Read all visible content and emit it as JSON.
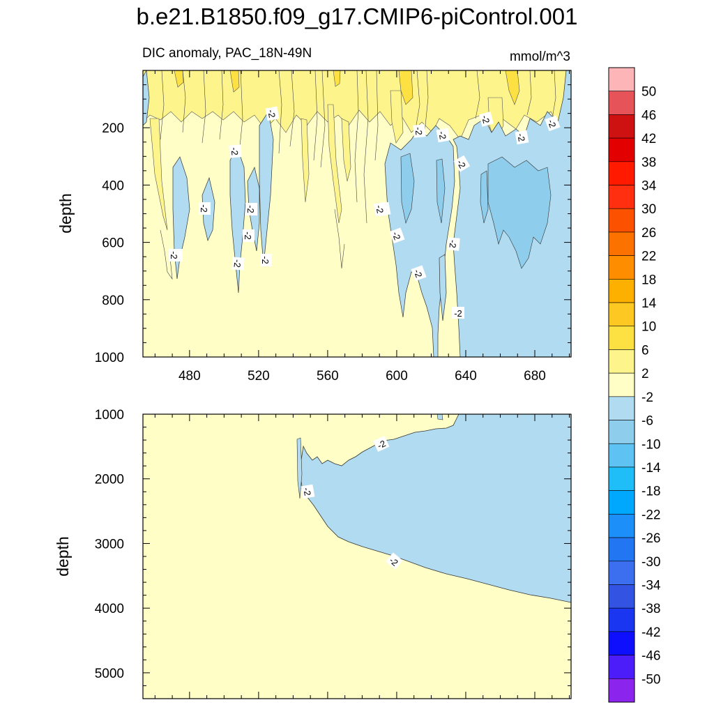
{
  "figure": {
    "title": "b.e21.B1850.f09_g17.CMIP6-piControl.001",
    "subtitle_left": "DIC anomaly, PAC_18N-49N",
    "subtitle_right": "mmol/m^3"
  },
  "chart_data": [
    {
      "type": "heatmap",
      "panel": "upper",
      "title": "DIC anomaly, PAC_18N-49N",
      "units": "mmol/m^3",
      "xlabel": "",
      "ylabel": "depth",
      "xlim": [
        453,
        701
      ],
      "ylim": [
        1000,
        0
      ],
      "xticks": [
        480,
        520,
        560,
        600,
        640,
        680
      ],
      "yticks": [
        200,
        400,
        600,
        800,
        1000
      ],
      "contour_label": "-2",
      "description_values": {
        "background_class": "-2 to 2",
        "negative_class": "-6 to -2",
        "strong_negative_class": "-10 to -6",
        "positive_class": "2 to 6",
        "strong_positive_class": "6 to 10"
      }
    },
    {
      "type": "heatmap",
      "panel": "lower",
      "xlabel": "",
      "ylabel": "depth",
      "xlim": [
        453,
        701
      ],
      "ylim": [
        5400,
        1000
      ],
      "yticks": [
        1000,
        2000,
        3000,
        4000,
        5000
      ],
      "contour_label": "-2"
    }
  ],
  "colorbar": {
    "levels": [
      "50",
      "46",
      "42",
      "38",
      "34",
      "30",
      "26",
      "22",
      "18",
      "14",
      "10",
      "6",
      "2",
      "-2",
      "-6",
      "-10",
      "-14",
      "-18",
      "-22",
      "-26",
      "-30",
      "-34",
      "-38",
      "-42",
      "-46",
      "-50"
    ],
    "colors": [
      "#fdb5b8",
      "#e6545a",
      "#ce1212",
      "#e20000",
      "#ff1a00",
      "#ff2f10",
      "#fc5200",
      "#fc7200",
      "#fe8d00",
      "#feb000",
      "#fdc822",
      "#fde143",
      "#fdf48c",
      "#fefec6",
      "#b0dbf1",
      "#8ecdeb",
      "#5ec2f3",
      "#1fbef8",
      "#00a8fd",
      "#1d8ff8",
      "#2276f1",
      "#3c6ff0",
      "#3354e2",
      "#1a36f0",
      "#0d0ffd",
      "#4c1cf9",
      "#8b25ee"
    ]
  },
  "labels": {
    "upper_ylabel": "depth",
    "lower_ylabel": "depth",
    "upper_contour_labels": [
      "-2",
      "-2",
      "-2",
      "-2",
      "-2",
      "-2",
      "-2",
      "-2",
      "-2",
      "-2",
      "-2",
      "-2",
      "-2",
      "-2",
      "-2",
      "-2",
      "-2",
      "-2",
      "-2",
      "-2",
      "-2"
    ],
    "lower_contour_labels": [
      "-2",
      "-2",
      "-2"
    ]
  }
}
